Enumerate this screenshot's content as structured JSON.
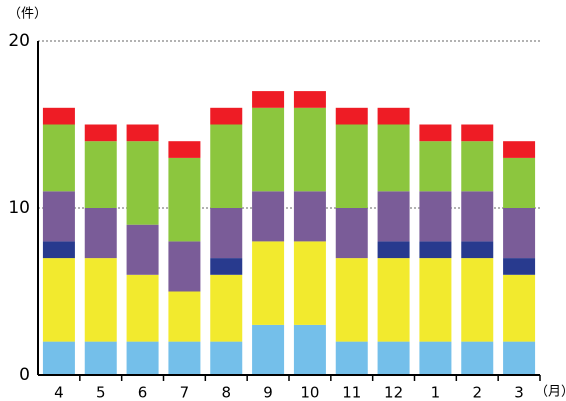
{
  "chart_data": {
    "type": "stacked_bar",
    "y_unit_label": "（件）",
    "x_unit_label": "（月）",
    "categories": [
      "4",
      "5",
      "6",
      "7",
      "8",
      "9",
      "10",
      "11",
      "12",
      "1",
      "2",
      "3"
    ],
    "series": [
      {
        "color": "#74bfea",
        "values": [
          2,
          2,
          2,
          2,
          2,
          3,
          3,
          2,
          2,
          2,
          2,
          2
        ]
      },
      {
        "color": "#f2ea2e",
        "values": [
          5,
          5,
          4,
          3,
          4,
          5,
          5,
          5,
          5,
          5,
          5,
          4
        ]
      },
      {
        "color": "#283a8e",
        "values": [
          1,
          0,
          0,
          0,
          1,
          0,
          0,
          0,
          1,
          1,
          1,
          1
        ]
      },
      {
        "color": "#7a5c98",
        "values": [
          3,
          3,
          3,
          3,
          3,
          3,
          3,
          3,
          3,
          3,
          3,
          3
        ]
      },
      {
        "color": "#8cc63e",
        "values": [
          4,
          4,
          5,
          5,
          5,
          5,
          5,
          5,
          4,
          3,
          3,
          3
        ]
      },
      {
        "color": "#ee1c25",
        "values": [
          1,
          1,
          1,
          1,
          1,
          1,
          1,
          1,
          1,
          1,
          1,
          1
        ]
      }
    ],
    "ylim": [
      0,
      20
    ],
    "yticks": [
      0,
      10,
      20
    ],
    "grid": true
  }
}
